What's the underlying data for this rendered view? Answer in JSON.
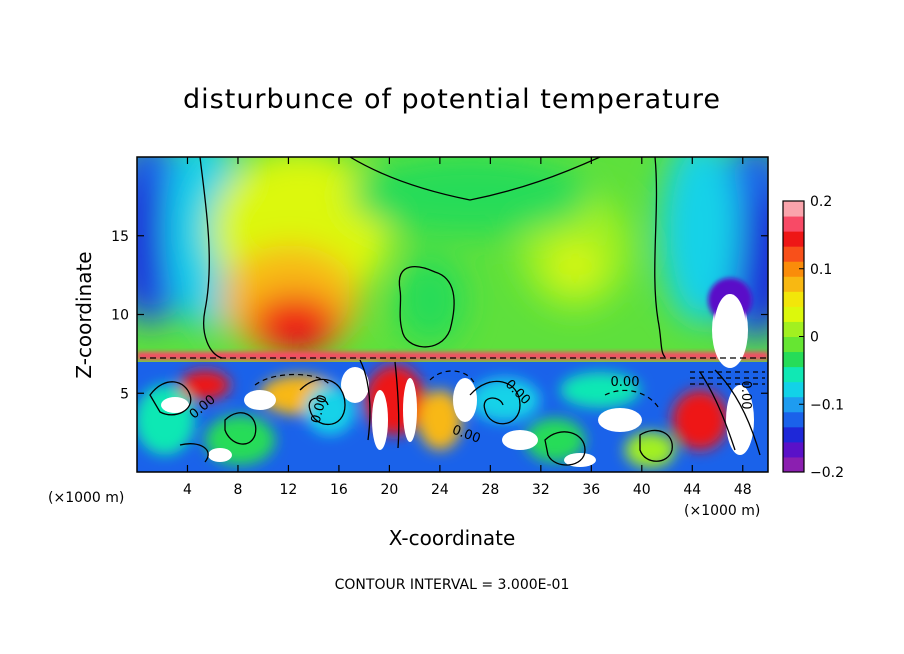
{
  "chart_data": {
    "type": "heatmap",
    "title": "disturbunce of potential temperature",
    "xlabel": "X-coordinate",
    "ylabel": "Z-coordinate",
    "x_unit": "(×1000 m)",
    "x_ticks": [
      4,
      8,
      12,
      16,
      20,
      24,
      28,
      32,
      36,
      40,
      44,
      48
    ],
    "y_ticks": [
      5,
      10,
      15
    ],
    "xlim": [
      0,
      50
    ],
    "ylim": [
      0,
      20
    ],
    "colorbar": {
      "ticks": [
        0.2,
        0.1,
        0,
        -0.1,
        -0.2
      ],
      "tick_labels": [
        "0.2",
        "0.1",
        "0",
        "−0.1",
        "−0.2"
      ],
      "range": [
        -0.2,
        0.2
      ],
      "colors": [
        "#8b1fb0",
        "#5a11c8",
        "#1e28d8",
        "#1a62ea",
        "#1e9cf0",
        "#12d2e8",
        "#10e8b4",
        "#26dc58",
        "#66e632",
        "#a2f020",
        "#dcf80c",
        "#f2e60a",
        "#f8b812",
        "#fa8c0a",
        "#f8501a",
        "#ee1616",
        "#f84a66",
        "#faa4ac"
      ]
    },
    "contour_labels": [
      "0.00",
      "0.00",
      "0.00",
      "0.00",
      "0.00",
      "0.00"
    ],
    "footer": "CONTOUR INTERVAL = 3.000E-01"
  }
}
